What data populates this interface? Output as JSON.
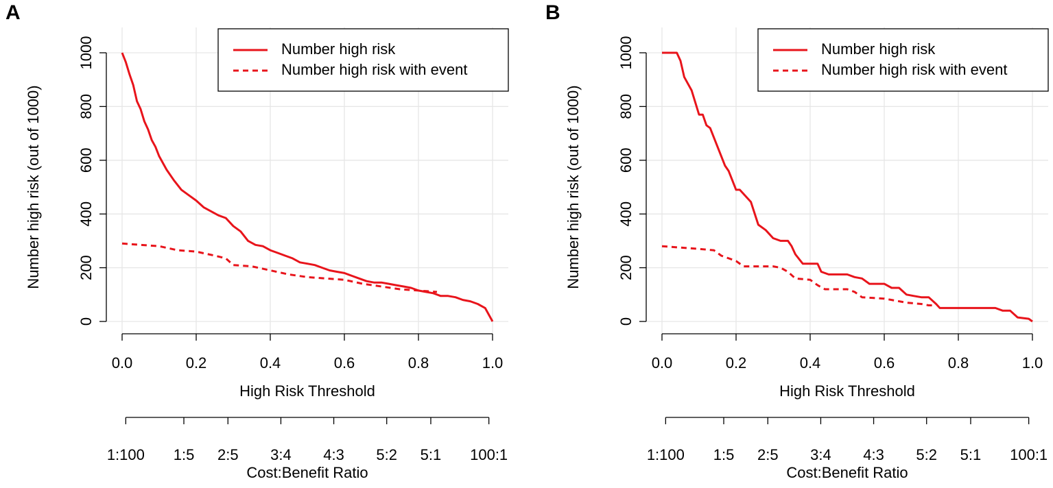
{
  "chart_data": [
    {
      "type": "line",
      "panel_label": "A",
      "xlabel": "High Risk Threshold",
      "ylabel": "Number high risk (out of 1000)",
      "x2label": "Cost:Benefit Ratio",
      "xlim": [
        0,
        1
      ],
      "ylim": [
        0,
        1000
      ],
      "xticks": [
        {
          "value": 0,
          "label": "0.0"
        },
        0.2,
        0.4,
        0.6,
        0.8,
        {
          "value": 1,
          "label": "1.0"
        }
      ],
      "yticks": [
        0,
        200,
        400,
        600,
        800,
        1000
      ],
      "x2ticks": [
        {
          "value": 0.0099,
          "label": "1:100"
        },
        {
          "value": 0.1667,
          "label": "1:5"
        },
        {
          "value": 0.2857,
          "label": "2:5"
        },
        {
          "value": 0.4286,
          "label": "3:4"
        },
        {
          "value": 0.5714,
          "label": "4:3"
        },
        {
          "value": 0.7143,
          "label": "5:2"
        },
        {
          "value": 0.8333,
          "label": "5:1"
        },
        {
          "value": 0.9901,
          "label": "100:1"
        }
      ],
      "grid": true,
      "legend": "top-right",
      "series": [
        {
          "name": "Number high risk",
          "color": "#e8141b",
          "linestyle": "solid",
          "x": [
            0,
            0.01,
            0.02,
            0.03,
            0.04,
            0.05,
            0.06,
            0.07,
            0.08,
            0.09,
            0.1,
            0.12,
            0.14,
            0.16,
            0.18,
            0.2,
            0.22,
            0.24,
            0.26,
            0.28,
            0.3,
            0.32,
            0.34,
            0.36,
            0.38,
            0.4,
            0.42,
            0.44,
            0.46,
            0.48,
            0.5,
            0.52,
            0.54,
            0.56,
            0.58,
            0.6,
            0.62,
            0.64,
            0.66,
            0.68,
            0.7,
            0.72,
            0.74,
            0.76,
            0.78,
            0.8,
            0.82,
            0.84,
            0.86,
            0.88,
            0.9,
            0.92,
            0.94,
            0.96,
            0.98,
            1
          ],
          "values": [
            1000,
            965,
            920,
            880,
            820,
            790,
            745,
            715,
            675,
            650,
            615,
            565,
            525,
            490,
            470,
            450,
            425,
            410,
            395,
            385,
            355,
            335,
            300,
            285,
            280,
            265,
            255,
            245,
            235,
            220,
            215,
            210,
            200,
            190,
            185,
            180,
            170,
            160,
            150,
            145,
            145,
            140,
            135,
            130,
            125,
            115,
            110,
            105,
            95,
            95,
            90,
            80,
            75,
            65,
            50,
            0
          ]
        },
        {
          "name": "Number high risk with event",
          "color": "#e8141b",
          "linestyle": "dashed",
          "x": [
            0,
            0.05,
            0.1,
            0.15,
            0.2,
            0.25,
            0.28,
            0.3,
            0.35,
            0.4,
            0.45,
            0.5,
            0.55,
            0.6,
            0.65,
            0.7,
            0.75,
            0.8,
            0.85
          ],
          "values": [
            290,
            285,
            280,
            265,
            260,
            245,
            235,
            210,
            205,
            190,
            175,
            165,
            160,
            155,
            140,
            130,
            120,
            115,
            110
          ]
        }
      ]
    },
    {
      "type": "line",
      "panel_label": "B",
      "xlabel": "High Risk Threshold",
      "ylabel": "Number high risk (out of 1000)",
      "x2label": "Cost:Benefit Ratio",
      "xlim": [
        0,
        1
      ],
      "ylim": [
        0,
        1000
      ],
      "xticks": [
        {
          "value": 0,
          "label": "0.0"
        },
        0.2,
        0.4,
        0.6,
        0.8,
        {
          "value": 1,
          "label": "1.0"
        }
      ],
      "yticks": [
        0,
        200,
        400,
        600,
        800,
        1000
      ],
      "x2ticks": [
        {
          "value": 0.0099,
          "label": "1:100"
        },
        {
          "value": 0.1667,
          "label": "1:5"
        },
        {
          "value": 0.2857,
          "label": "2:5"
        },
        {
          "value": 0.4286,
          "label": "3:4"
        },
        {
          "value": 0.5714,
          "label": "4:3"
        },
        {
          "value": 0.7143,
          "label": "5:2"
        },
        {
          "value": 0.8333,
          "label": "5:1"
        },
        {
          "value": 0.9901,
          "label": "100:1"
        }
      ],
      "grid": true,
      "legend": "top-right",
      "series": [
        {
          "name": "Number high risk",
          "color": "#e8141b",
          "linestyle": "solid",
          "x": [
            0,
            0.04,
            0.05,
            0.06,
            0.08,
            0.1,
            0.11,
            0.12,
            0.13,
            0.15,
            0.17,
            0.18,
            0.2,
            0.21,
            0.24,
            0.26,
            0.28,
            0.3,
            0.32,
            0.34,
            0.35,
            0.36,
            0.38,
            0.42,
            0.43,
            0.45,
            0.5,
            0.52,
            0.54,
            0.56,
            0.6,
            0.62,
            0.64,
            0.66,
            0.68,
            0.7,
            0.72,
            0.74,
            0.75,
            0.9,
            0.92,
            0.94,
            0.96,
            0.99,
            1
          ],
          "values": [
            1000,
            1000,
            970,
            910,
            860,
            770,
            770,
            730,
            720,
            650,
            580,
            560,
            490,
            490,
            445,
            360,
            340,
            310,
            300,
            300,
            280,
            250,
            215,
            215,
            185,
            175,
            175,
            165,
            160,
            140,
            140,
            125,
            125,
            100,
            95,
            90,
            90,
            65,
            50,
            50,
            40,
            40,
            15,
            10,
            0
          ]
        },
        {
          "name": "Number high risk with event",
          "color": "#e8141b",
          "linestyle": "dashed",
          "x": [
            0,
            0.1,
            0.14,
            0.16,
            0.18,
            0.2,
            0.22,
            0.3,
            0.32,
            0.34,
            0.36,
            0.4,
            0.42,
            0.44,
            0.5,
            0.52,
            0.54,
            0.6,
            0.62,
            0.66,
            0.7,
            0.72,
            0.73
          ],
          "values": [
            280,
            270,
            265,
            245,
            235,
            225,
            205,
            205,
            200,
            185,
            160,
            155,
            135,
            120,
            120,
            110,
            90,
            85,
            80,
            70,
            65,
            60,
            60
          ]
        }
      ]
    }
  ]
}
